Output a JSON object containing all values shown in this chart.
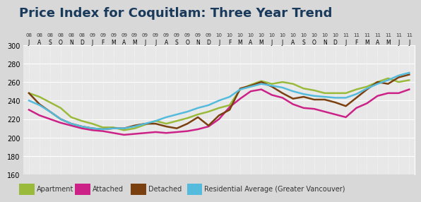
{
  "title": "Price Index for Coquitlam: Three Year Trend",
  "title_color": "#1a3a5c",
  "background_color": "#d8d8d8",
  "plot_background": "#e8e8e8",
  "ylim": [
    160,
    300
  ],
  "yticks": [
    160,
    180,
    200,
    220,
    240,
    260,
    280,
    300
  ],
  "months_top": [
    "J",
    "A",
    "S",
    "O",
    "N",
    "D",
    "J",
    "F",
    "M",
    "A",
    "M",
    "J",
    "J",
    "A",
    "S",
    "O",
    "N",
    "D",
    "J",
    "F",
    "M",
    "A",
    "M",
    "J",
    "J",
    "A",
    "S",
    "O",
    "N",
    "D",
    "J",
    "F",
    "M",
    "A",
    "M",
    "J",
    "J"
  ],
  "years_top": [
    "08",
    "08",
    "08",
    "08",
    "08",
    "08",
    "09",
    "09",
    "09",
    "09",
    "09",
    "09",
    "09",
    "09",
    "09",
    "09",
    "09",
    "09",
    "10",
    "10",
    "10",
    "10",
    "10",
    "10",
    "10",
    "10",
    "10",
    "10",
    "10",
    "10",
    "11",
    "11",
    "11",
    "11",
    "11",
    "11",
    "11"
  ],
  "colors": {
    "apartment": "#9aba3c",
    "attached": "#cc2288",
    "detached": "#7b4010",
    "residential": "#55bbdd"
  },
  "line_width": 1.8,
  "apartment": [
    248,
    244,
    238,
    232,
    222,
    218,
    215,
    211,
    211,
    208,
    210,
    214,
    218,
    215,
    218,
    221,
    225,
    228,
    232,
    235,
    252,
    257,
    261,
    258,
    260,
    258,
    253,
    251,
    248,
    248,
    248,
    252,
    255,
    260,
    264,
    260,
    262
  ],
  "attached": [
    230,
    224,
    220,
    216,
    213,
    210,
    208,
    207,
    205,
    203,
    204,
    205,
    206,
    205,
    206,
    207,
    209,
    212,
    220,
    233,
    242,
    250,
    252,
    246,
    243,
    236,
    232,
    231,
    228,
    225,
    222,
    232,
    237,
    245,
    248,
    248,
    252
  ],
  "detached": [
    248,
    236,
    228,
    220,
    215,
    212,
    210,
    209,
    210,
    210,
    213,
    215,
    215,
    212,
    210,
    215,
    222,
    213,
    224,
    230,
    253,
    256,
    260,
    255,
    248,
    242,
    244,
    241,
    241,
    238,
    234,
    243,
    252,
    260,
    258,
    265,
    268
  ],
  "residential": [
    240,
    235,
    228,
    220,
    215,
    212,
    210,
    209,
    210,
    210,
    212,
    215,
    218,
    222,
    225,
    228,
    232,
    235,
    240,
    244,
    252,
    255,
    258,
    256,
    254,
    250,
    247,
    245,
    244,
    243,
    243,
    247,
    253,
    258,
    262,
    267,
    270
  ]
}
